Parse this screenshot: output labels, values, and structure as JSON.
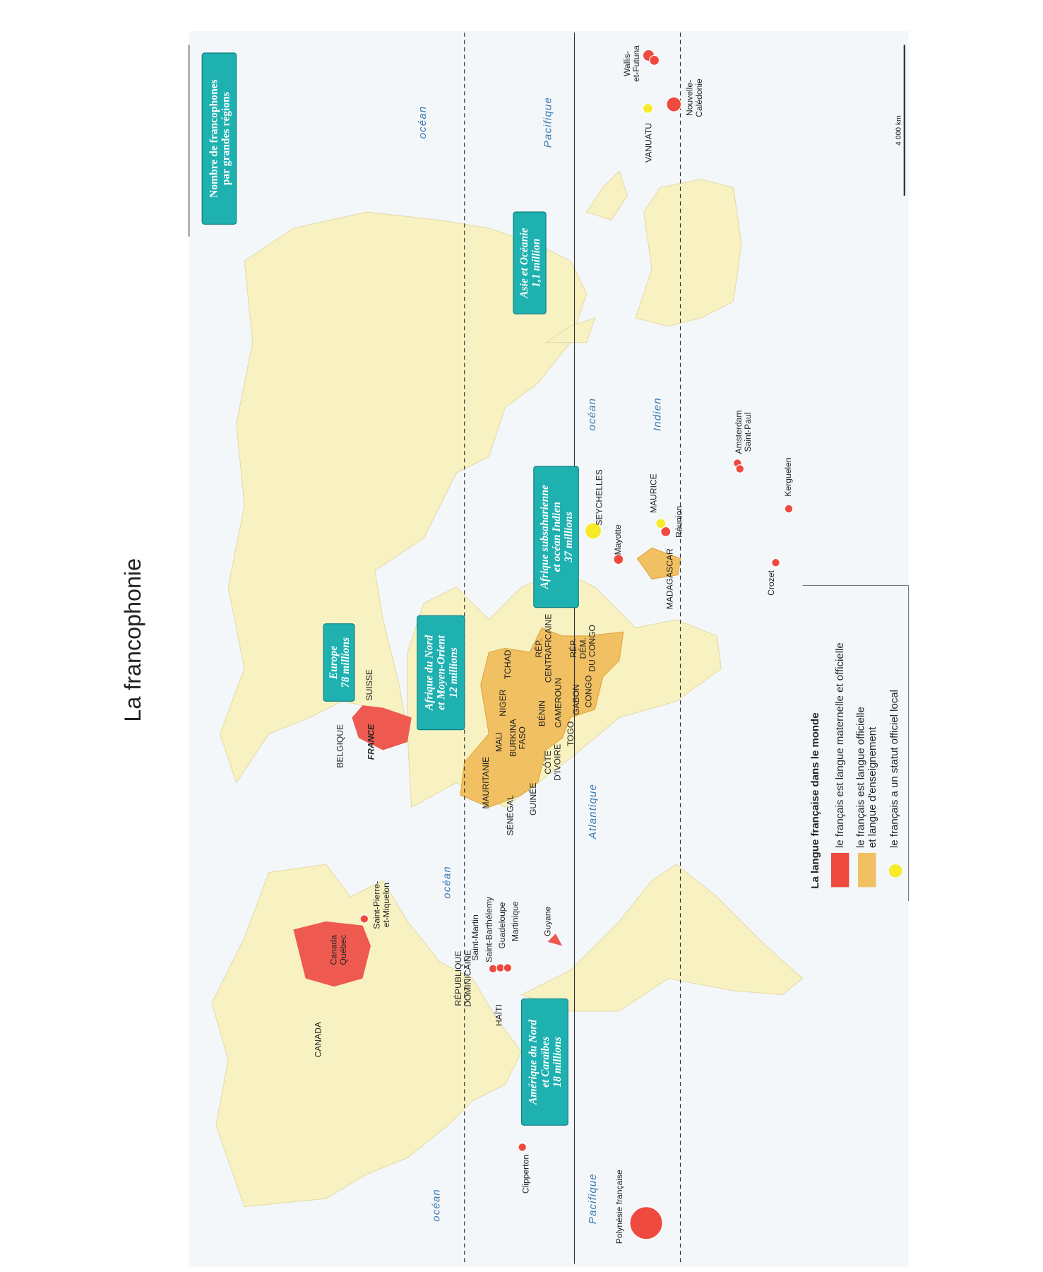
{
  "title": "La francophonie",
  "summary_box": {
    "lines": [
      "Nombre de francophones",
      "par grandes régions"
    ]
  },
  "regions": [
    {
      "name": [
        "Europe"
      ],
      "count": "78 millions"
    },
    {
      "name": [
        "Afrique du Nord",
        "et Moyen-Orient"
      ],
      "count": "12 millions"
    },
    {
      "name": [
        "Afrique subsaharienne",
        "et océan Indien"
      ],
      "count": "37 millions"
    },
    {
      "name": [
        "Asie et Océanie"
      ],
      "count": "1,1 million"
    },
    {
      "name": [
        "Amérique du Nord",
        "et Caraïbes"
      ],
      "count": "18 millions"
    }
  ],
  "oceans": [
    "océan",
    "Pacifique",
    "océan",
    "Indien",
    "océan",
    "Atlantique",
    "océan",
    "Pacifique"
  ],
  "places": [
    [
      "CANADA"
    ],
    [
      "Canada",
      "Québec"
    ],
    [
      "Saint-Pierre-",
      "et-Miquelon"
    ],
    [
      "RÉPUBLIQUE",
      "DOMINICAINE"
    ],
    [
      "HAÏTI"
    ],
    [
      "Saint-Martin"
    ],
    [
      "Saint-Barthélemy"
    ],
    [
      "Guadeloupe"
    ],
    [
      "Martinique"
    ],
    [
      "Guyane"
    ],
    [
      "Clipperton"
    ],
    [
      "Polynésie française"
    ],
    [
      "BELGIQUE"
    ],
    [
      "FRANCE"
    ],
    [
      "SUISSE"
    ],
    [
      "MAURITANIE"
    ],
    [
      "SÉNÉGAL"
    ],
    [
      "GUINÉE"
    ],
    [
      "MALI"
    ],
    [
      "BURKINA",
      "FASO"
    ],
    [
      "CÔTE",
      "D'IVOIRE"
    ],
    [
      "NIGER"
    ],
    [
      "TCHAD"
    ],
    [
      "BÉNIN"
    ],
    [
      "TOGO"
    ],
    [
      "CAMEROUN"
    ],
    [
      "GABON"
    ],
    [
      "CONGO"
    ],
    [
      "RÉP.",
      "CENTRAFICAINE"
    ],
    [
      "RÉP.",
      "DÉM.",
      "DU CONGO"
    ],
    [
      "SEYCHELLES"
    ],
    [
      "Mayotte"
    ],
    [
      "MAURICE"
    ],
    [
      "Réunion"
    ],
    [
      "MADAGASCAR"
    ],
    [
      "Crozet"
    ],
    [
      "Kerguelen"
    ],
    [
      "Amsterdam",
      "Saint-Paul"
    ],
    [
      "VANUATU"
    ],
    [
      "Wallis-",
      "et-Futuna"
    ],
    [
      "Nouvelle-",
      "Calédonie"
    ]
  ],
  "legend": {
    "title": "La langue française dans le monde",
    "items": [
      [
        "le français est langue maternelle et officielle"
      ],
      [
        "le français est langue officielle",
        "et langue d'enseignement"
      ],
      [
        "le français a un statut officiel local"
      ]
    ]
  },
  "scale": "4 000 km"
}
